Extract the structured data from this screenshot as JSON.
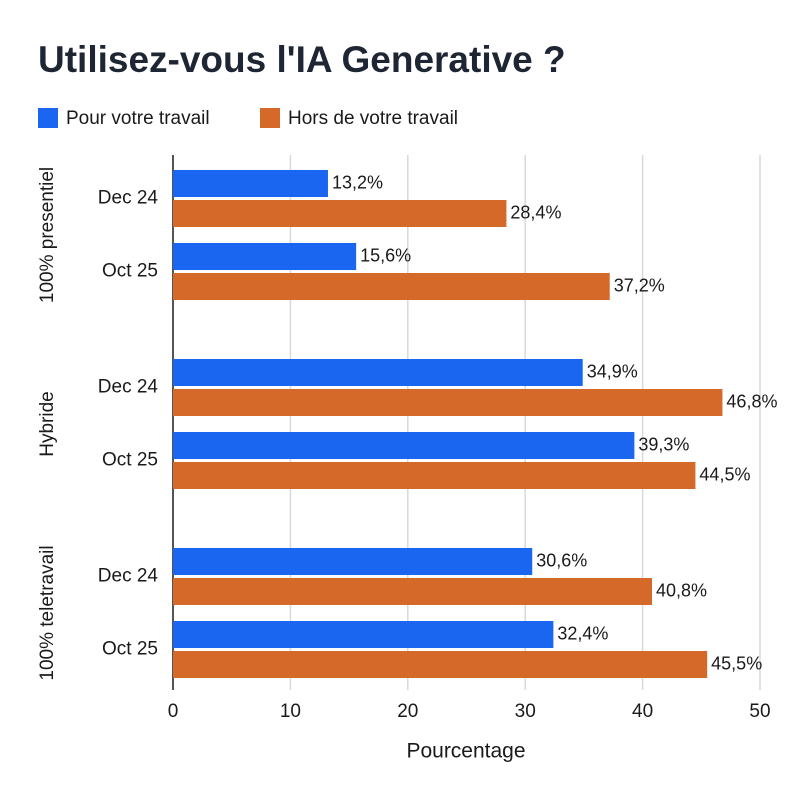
{
  "chart_data": {
    "type": "bar",
    "orientation": "horizontal",
    "title": "Utilisez-vous l'IA Generative ?",
    "x_label": "Pourcentage",
    "groups": [
      "100% presentiel",
      "Hybride",
      "100% teletravail"
    ],
    "categories": [
      "Dec 24",
      "Oct 25",
      "Dec 24",
      "Oct 25",
      "Dec 24",
      "Oct 25"
    ],
    "series": [
      {
        "name": "Pour votre travail",
        "color": "#1a66f0",
        "values": [
          13.2,
          15.6,
          34.9,
          39.3,
          30.6,
          32.4
        ],
        "value_labels": [
          "13,2%",
          "15,6%",
          "34,9%",
          "39,3%",
          "30,6%",
          "32,4%"
        ]
      },
      {
        "name": "Hors de votre travail",
        "color": "#d4692a",
        "values": [
          28.4,
          37.2,
          46.8,
          44.5,
          40.8,
          45.5
        ],
        "value_labels": [
          "28,4%",
          "37,2%",
          "46,8%",
          "44,5%",
          "40,8%",
          "45,5%"
        ]
      }
    ],
    "xlim": [
      0,
      50
    ],
    "xticks": [
      0,
      10,
      20,
      30,
      40,
      50
    ],
    "grid": true
  }
}
